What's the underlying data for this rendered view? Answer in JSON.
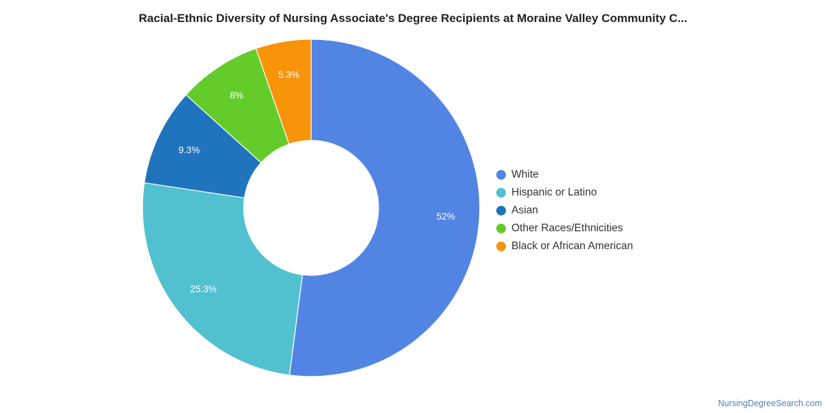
{
  "chart_data": {
    "type": "pie",
    "title": "Racial-Ethnic Diversity of Nursing Associate's Degree Recipients at Moraine Valley Community C...",
    "categories": [
      "White",
      "Hispanic or Latino",
      "Asian",
      "Other Races/Ethnicities",
      "Black or African American"
    ],
    "values": [
      52,
      25.3,
      9.3,
      8,
      5.3
    ],
    "value_labels": [
      "52%",
      "25.3%",
      "9.3%",
      "8%",
      "5.3%"
    ],
    "colors": [
      "#5285e3",
      "#52c1cf",
      "#1f74bd",
      "#63cc2b",
      "#f7940a"
    ],
    "legend_position": "right",
    "donut": true
  },
  "source": "NursingDegreeSearch.com"
}
